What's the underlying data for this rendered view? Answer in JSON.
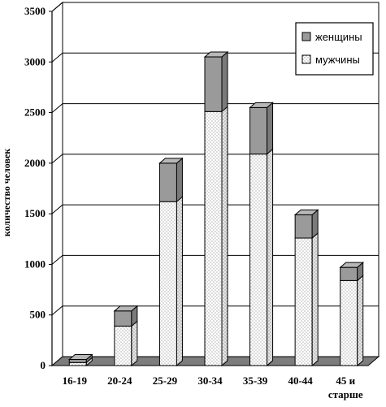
{
  "chart_data": {
    "type": "bar",
    "stacked": true,
    "ylabel": "количество человек",
    "xlabel": "",
    "ylim": [
      0,
      3500
    ],
    "y_ticks": [
      0,
      500,
      1000,
      1500,
      2000,
      2500,
      3000,
      3500
    ],
    "grid": true,
    "legend_position": "top-right",
    "categories": [
      "16-19",
      "20-24",
      "25-29",
      "30-34",
      "35-39",
      "40-44",
      "45 и старше"
    ],
    "category_labels": [
      [
        "16-19"
      ],
      [
        "20-24"
      ],
      [
        "25-29"
      ],
      [
        "30-34"
      ],
      [
        "35-39"
      ],
      [
        "40-44"
      ],
      [
        "45 и",
        "старше"
      ]
    ],
    "series": [
      {
        "name": "мужчины",
        "values": [
          30,
          390,
          1620,
          2510,
          2090,
          1260,
          840
        ],
        "color": "#ffffff",
        "pattern": "dots"
      },
      {
        "name": "женщины",
        "values": [
          30,
          150,
          380,
          540,
          460,
          230,
          130
        ],
        "color": "#9a9a9a",
        "pattern": "solid"
      }
    ],
    "legend_order": [
      "женщины",
      "мужчины"
    ]
  }
}
